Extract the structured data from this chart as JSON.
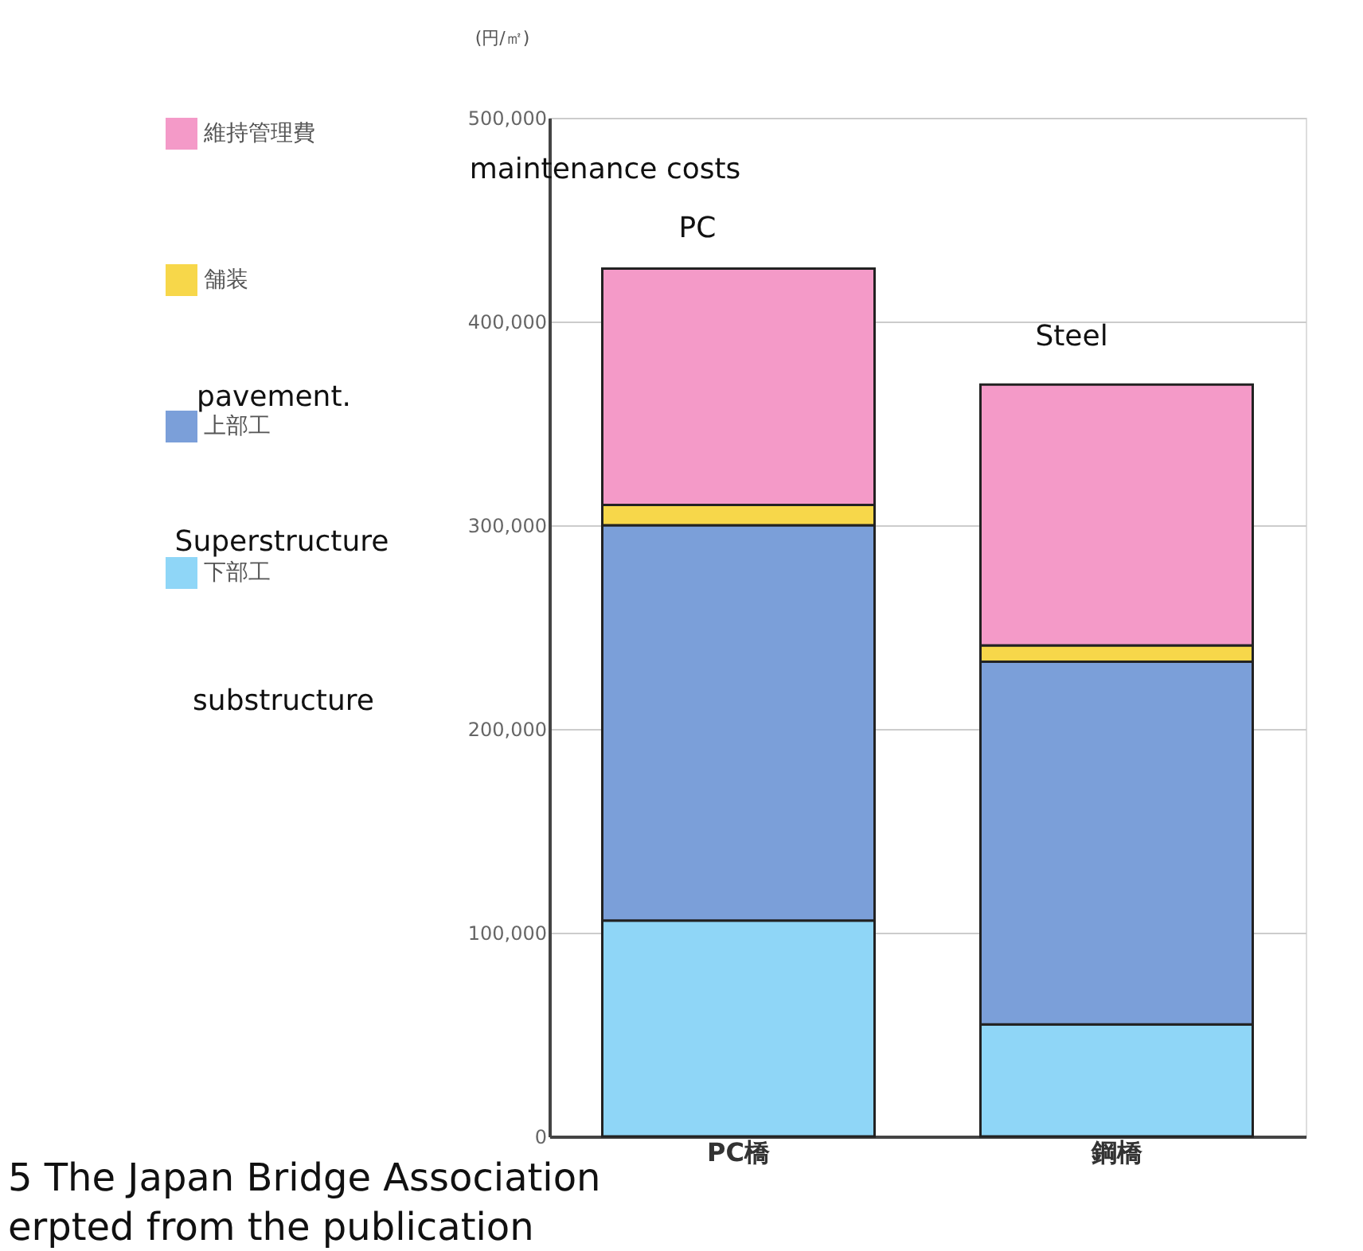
{
  "chart_data": {
    "type": "bar",
    "stacked": true,
    "ylabel": "(円/㎡)",
    "categories": [
      "PC橋",
      "鋼橋"
    ],
    "series": [
      {
        "name": "下部工",
        "color": "#8fd6f7",
        "values": [
          106000,
          55000
        ]
      },
      {
        "name": "上部工",
        "color": "#7b9fd9",
        "values": [
          194000,
          178000
        ]
      },
      {
        "name": "舗装",
        "color": "#f7d74a",
        "values": [
          10000,
          8000
        ]
      },
      {
        "name": "維持管理費",
        "color": "#f49ac8",
        "values": [
          116000,
          128000
        ]
      }
    ],
    "ylim": [
      0,
      500000
    ],
    "yticks": [
      0,
      {
        "value": 100000,
        "label": "100,000"
      },
      {
        "value": 200000,
        "label": "200,000"
      },
      {
        "value": 300000,
        "label": "300,000"
      },
      {
        "value": 400000,
        "label": "400,000"
      },
      {
        "value": 500000,
        "label": "500,000"
      }
    ],
    "grid": "y",
    "legend": "left",
    "annotations": [
      "maintenance costs",
      "PC",
      "Steel",
      "pavement.",
      "Superstructure",
      "substructure",
      "5 The Japan Bridge Association",
      "erpted from the publication"
    ]
  }
}
